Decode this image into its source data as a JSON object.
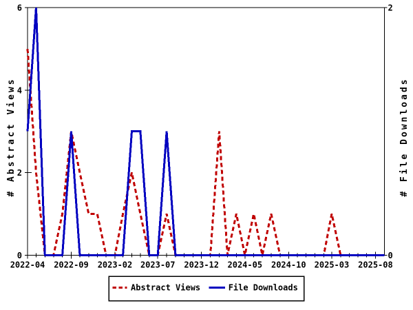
{
  "chart_data": {
    "type": "line",
    "title": "",
    "months": [
      "2022-04",
      "2022-05",
      "2022-06",
      "2022-07",
      "2022-08",
      "2022-09",
      "2022-10",
      "2022-11",
      "2022-12",
      "2023-01",
      "2023-02",
      "2023-03",
      "2023-04",
      "2023-05",
      "2023-06",
      "2023-07",
      "2023-08",
      "2023-09",
      "2023-10",
      "2023-11",
      "2023-12",
      "2024-01",
      "2024-02",
      "2024-03",
      "2024-04",
      "2024-05",
      "2024-06",
      "2024-07",
      "2024-08",
      "2024-09",
      "2024-10",
      "2024-11",
      "2024-12",
      "2025-01",
      "2025-02",
      "2025-03",
      "2025-04",
      "2025-05",
      "2025-06",
      "2025-07",
      "2025-08"
    ],
    "x_tick_labels": [
      "2022-04",
      "2022-09",
      "2023-02",
      "2023-07",
      "2023-12",
      "2024-05",
      "2024-10",
      "2025-03",
      "2025-08"
    ],
    "y_left": {
      "label": "# Abstract Views",
      "min": 0,
      "max": 6,
      "ticks": [
        0,
        2,
        4,
        6
      ]
    },
    "y_right": {
      "label": "# File Downloads",
      "min": 0,
      "max": 2,
      "ticks": [
        0,
        2
      ]
    },
    "series": [
      {
        "name": "Abstract Views",
        "color": "#c00000",
        "line_style": "dashed",
        "axis": "left",
        "values": [
          5,
          2,
          0,
          0,
          1,
          3,
          2,
          1,
          1,
          0,
          0,
          1,
          2,
          1,
          0,
          0,
          1,
          0,
          0,
          0,
          0,
          0,
          3,
          0,
          1,
          0,
          1,
          0,
          1,
          0,
          0,
          0,
          0,
          0,
          0,
          1,
          0,
          0,
          0,
          0,
          0
        ]
      },
      {
        "name": "File Downloads",
        "color": "#0000c0",
        "line_style": "solid",
        "axis": "right",
        "values": [
          1,
          2,
          0,
          0,
          0,
          1,
          0,
          0,
          0,
          0,
          0,
          0,
          1,
          1,
          0,
          0,
          1,
          0,
          0,
          0,
          0,
          0,
          0,
          0,
          0,
          0,
          0,
          0,
          0,
          0,
          0,
          0,
          0,
          0,
          0,
          0,
          0,
          0,
          0,
          0,
          0
        ]
      }
    ],
    "legend": {
      "items": [
        "Abstract Views",
        "File Downloads"
      ],
      "position": "bottom-center"
    }
  }
}
